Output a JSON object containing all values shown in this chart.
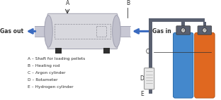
{
  "bg_color": "#ffffff",
  "gas_out_label": "Gas out",
  "gas_in_label": "Gas in",
  "legend_items": [
    "A – Shaft for loading pellets",
    "B – Heating rod",
    "C – Argon cylinder",
    "D – Rotameter",
    "E – Hydrogen cylinder"
  ],
  "label_A": "A",
  "label_B": "B",
  "label_C": "C",
  "label_D": "D",
  "label_E": "E",
  "furnace_color": "#d8d8de",
  "furnace_border": "#a0a0b0",
  "endcap_color": "#c0c0cc",
  "tube_color": "#c8c8d4",
  "pipe_color": "#5a6070",
  "arrow_blue": "#3a6abf",
  "argon_color": "#4488cc",
  "argon_border": "#2060a0",
  "hydrogen_color": "#e06820",
  "hydrogen_border": "#b05010",
  "regulator_color": "#5a6070",
  "gauge_color": "#c8c8c8",
  "rotameter_color": "#e8e8e8",
  "foot_color": "#303030",
  "dashed_color": "#909098",
  "text_color": "#303030"
}
